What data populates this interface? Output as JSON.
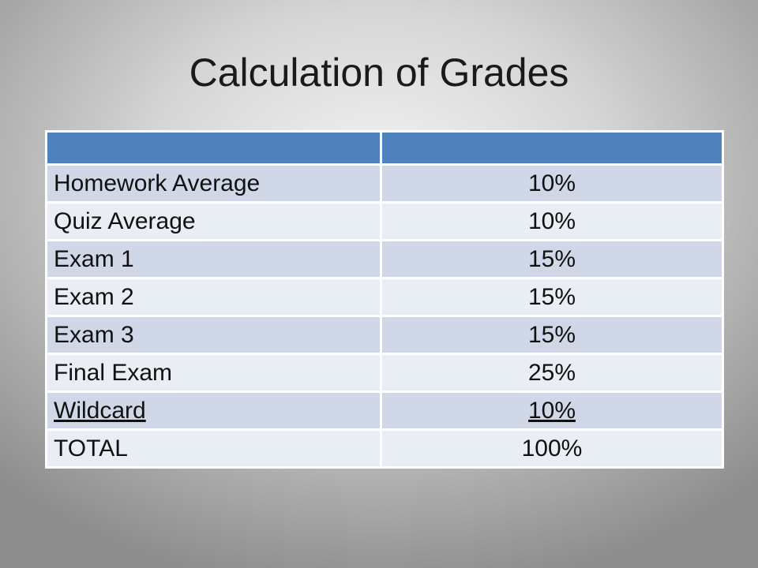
{
  "title": "Calculation of Grades",
  "table": {
    "header": [
      "",
      ""
    ],
    "rows": [
      {
        "label": "Homework Average",
        "value": "10%"
      },
      {
        "label": "Quiz Average",
        "value": "10%"
      },
      {
        "label": "Exam 1",
        "value": "15%"
      },
      {
        "label": "Exam 2",
        "value": "15%"
      },
      {
        "label": "Exam 3",
        "value": "15%"
      },
      {
        "label": "Final Exam",
        "value": "25%"
      },
      {
        "label": "Wildcard",
        "value": "10%"
      },
      {
        "label": "TOTAL",
        "value": "100%"
      }
    ]
  },
  "colors": {
    "header": "#4f81bd",
    "row_dark": "#d0d8e8",
    "row_light": "#e9edf4"
  }
}
